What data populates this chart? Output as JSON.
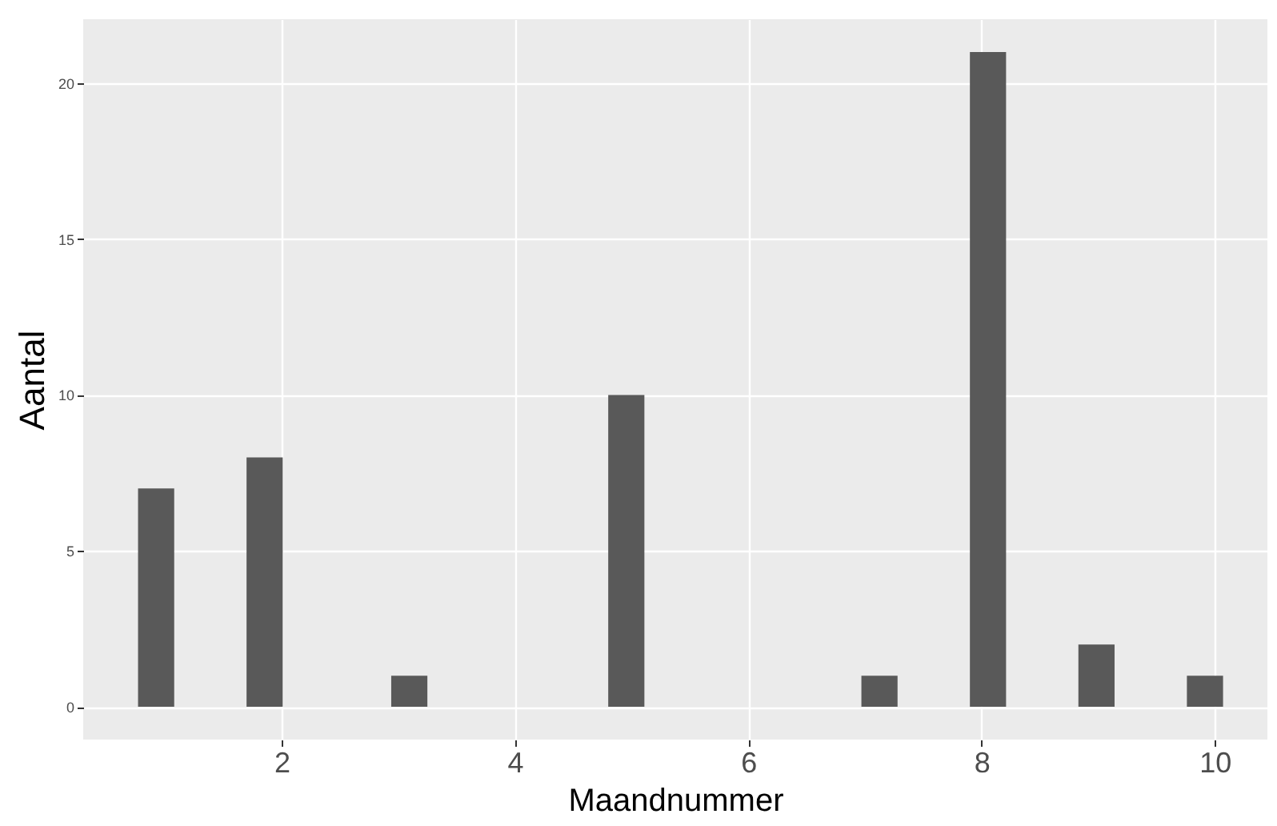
{
  "chart_data": {
    "type": "histogram",
    "xlabel": "Maandnummer",
    "ylabel": "Aantal",
    "bins": [
      0.77,
      1.08,
      1.39,
      1.7,
      2.01,
      2.32,
      2.63,
      2.94,
      3.25,
      3.56,
      3.87,
      4.18,
      4.49,
      4.8,
      5.11,
      5.42,
      5.73,
      6.04,
      6.35,
      6.66,
      6.97,
      7.28,
      7.59,
      7.9,
      8.21,
      8.52,
      8.83,
      9.14,
      9.45,
      9.76,
      10.07
    ],
    "values": [
      7,
      0,
      0,
      8,
      0,
      0,
      0,
      1,
      0,
      0,
      0,
      0,
      0,
      10,
      0,
      0,
      0,
      0,
      0,
      0,
      1,
      0,
      0,
      21,
      0,
      0,
      2,
      0,
      0,
      1
    ],
    "color": "#595959",
    "xlim": [
      0.3,
      10.45
    ],
    "ylim": [
      -1.05,
      22.05
    ],
    "xticks": [
      2,
      4,
      6,
      8,
      10
    ],
    "yticks": [
      0,
      5,
      10,
      15,
      20
    ],
    "grid": true
  }
}
